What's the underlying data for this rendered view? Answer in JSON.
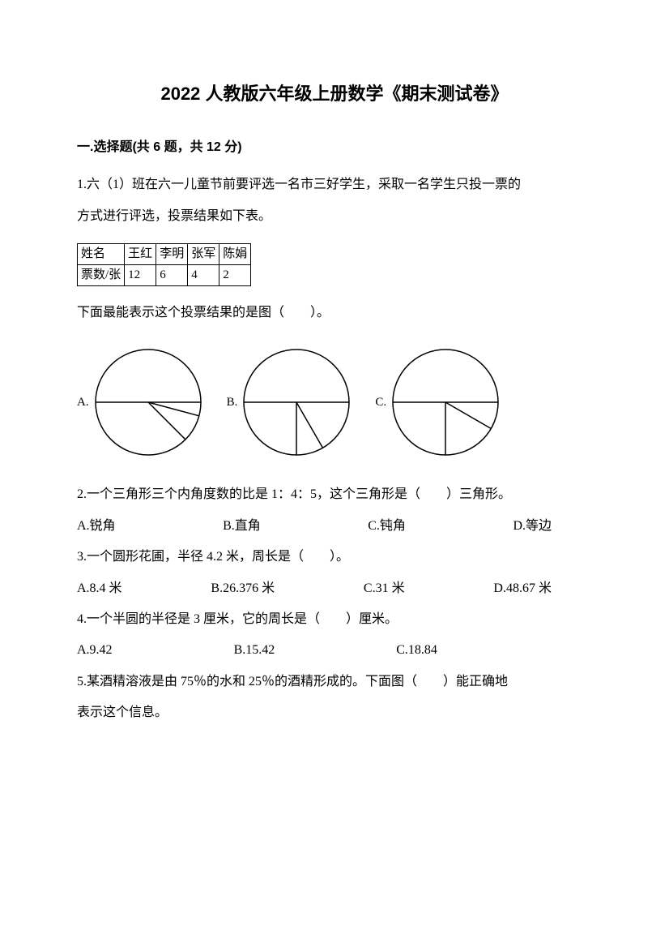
{
  "title": "2022 人教版六年级上册数学《期末测试卷》",
  "section1": {
    "header": "一.选择题(共 6 题，共 12 分)",
    "q1": {
      "line1": "1.六（1）班在六一儿童节前要评选一名市三好学生，采取一名学生只投一票的",
      "line2": "方式进行评选，投票结果如下表。",
      "table_h0": "姓名",
      "table_h1": "王红",
      "table_h2": "李明",
      "table_h3": "张军",
      "table_h4": "陈娟",
      "table_r0": "票数/张",
      "table_r1": "12",
      "table_r2": "6",
      "table_r3": "4",
      "table_r4": "2",
      "prompt": "下面最能表示这个投票结果的是图（　　）。",
      "optA": "A.",
      "optB": "B.",
      "optC": "C.",
      "pieA": {
        "radius": 65,
        "stroke": "#000000",
        "stroke_width": 1.5,
        "angles": [
          270,
          90,
          105,
          135
        ]
      },
      "pieB": {
        "radius": 65,
        "stroke": "#000000",
        "stroke_width": 1.5,
        "angles": [
          270,
          90,
          150,
          180
        ]
      },
      "pieC": {
        "radius": 65,
        "stroke": "#000000",
        "stroke_width": 1.5,
        "angles": [
          270,
          90,
          120,
          180
        ]
      }
    },
    "q2": {
      "text": "2.一个三角形三个内角度数的比是 1：4：5，这个三角形是（　　）三角形。",
      "optA": "A.锐角",
      "optB": "B.直角",
      "optC": "C.钝角",
      "optD": "D.等边"
    },
    "q3": {
      "text": "3.一个圆形花圃，半径 4.2 米，周长是（　　）。",
      "optA": "A.8.4 米",
      "optB": "B.26.376 米",
      "optC": "C.31 米",
      "optD": "D.48.67 米"
    },
    "q4": {
      "text": "4.一个半圆的半径是 3 厘米，它的周长是（　　）厘米。",
      "optA": "A.9.42",
      "optB": "B.15.42",
      "optC": "C.18.84"
    },
    "q5": {
      "line1": "5.某酒精溶液是由 75％的水和 25％的酒精形成的。下面图（　　）能正确地",
      "line2": "表示这个信息。"
    }
  }
}
